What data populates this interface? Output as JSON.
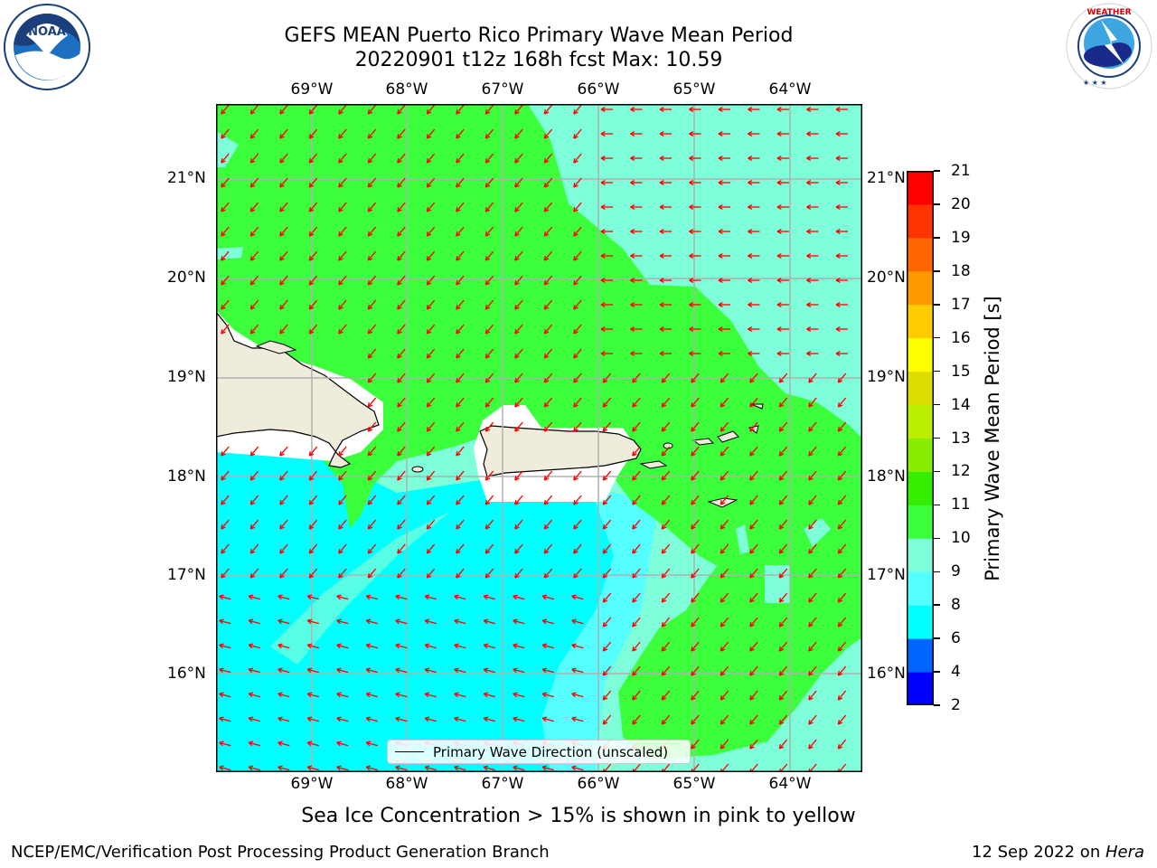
{
  "header": {
    "title_line1": "GEFS MEAN Puerto Rico Primary Wave Mean Period",
    "title_line2": "20220901 t12z 168h fcst   Max: 10.59"
  },
  "logos": {
    "noaa": {
      "text": "NOAA",
      "ring_text": "NATIONAL OCEANIC AND ATMOSPHERIC ADMINISTRATION · U.S. DEPARTMENT OF COMMERCE"
    },
    "nws": {
      "ring_text": "NATIONAL WEATHER SERVICE"
    }
  },
  "map": {
    "lon_labels": [
      "69°W",
      "68°W",
      "67°W",
      "66°W",
      "65°W",
      "64°W"
    ],
    "lat_labels": [
      "21°N",
      "20°N",
      "19°N",
      "18°N",
      "17°N",
      "16°N"
    ],
    "legend_label": "Primary Wave Direction (unscaled)",
    "arrow_color": "#ff0000",
    "land_color": "#efecdc"
  },
  "colorbar": {
    "title": "Primary Wave Mean Period [s]",
    "ticks": [
      "21",
      "20",
      "19",
      "18",
      "17",
      "16",
      "15",
      "14",
      "13",
      "12",
      "11",
      "10",
      "9",
      "8",
      "6",
      "4",
      "2"
    ],
    "colors_bottom_to_top": [
      "#0000ff",
      "#0064ff",
      "#00ffff",
      "#55ffff",
      "#7fffd9",
      "#3cff3c",
      "#33ee00",
      "#88ee00",
      "#bbee00",
      "#dddd00",
      "#ffff00",
      "#ffcc00",
      "#ff9900",
      "#ff6600",
      "#ff3300",
      "#ff0000"
    ]
  },
  "notes": {
    "ice": "Sea Ice Concentration > 15% is shown in pink to yellow"
  },
  "footer": {
    "left": "NCEP/EMC/Verification Post Processing Product Generation Branch",
    "right_date": "12 Sep 2022 on ",
    "right_host": "Hera"
  }
}
